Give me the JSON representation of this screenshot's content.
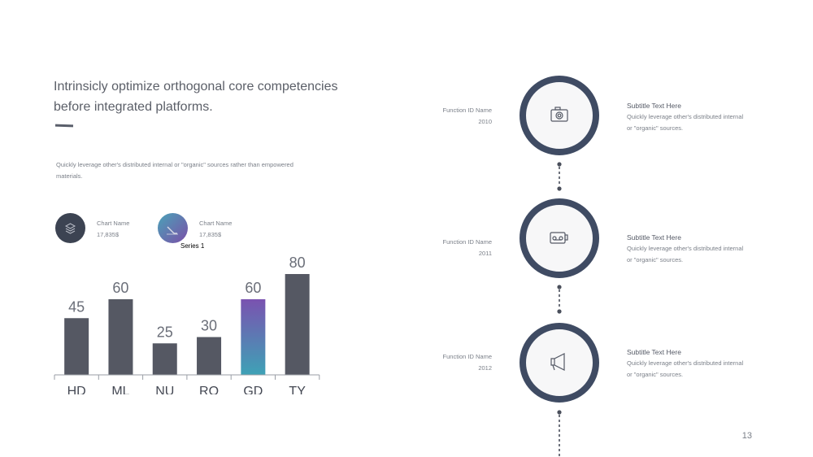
{
  "headline": "Intrinsicly optimize orthogonal core competencies before integrated platforms.",
  "body_text": "Quickly leverage  other's distributed internal or \"organic\" sources rather than empowered  materials.",
  "stats": [
    {
      "name": "Chart Name",
      "value": "17,835$",
      "icon": "layers-icon",
      "color": "#3c4352"
    },
    {
      "name": "Chart Name",
      "value": "17,835$",
      "icon": "pen-icon",
      "color_from": "#4aa3b8",
      "color_to": "#7a4fa8"
    }
  ],
  "chart_data": {
    "type": "bar",
    "legend_label": "Series 1",
    "categories": [
      "HD",
      "ML",
      "NU",
      "RO",
      "GD",
      "TY"
    ],
    "values": [
      45,
      60,
      25,
      30,
      60,
      80
    ],
    "highlight_index": 4,
    "ylim": [
      0,
      100
    ],
    "bar_color": "#555863",
    "highlight_from": "#7a52b0",
    "highlight_to": "#3ea2b6"
  },
  "timeline": [
    {
      "id_label": "Function ID Name",
      "year": "2010",
      "icon": "camera-icon",
      "title": "Subtitle  Text Here",
      "desc": "Quickly leverage  other's distributed internal  or \"organic\"  sources."
    },
    {
      "id_label": "Function ID Name",
      "year": "2011",
      "icon": "cassette-icon",
      "title": "Subtitle  Text Here",
      "desc": "Quickly leverage  other's distributed internal  or \"organic\"  sources."
    },
    {
      "id_label": "Function ID Name",
      "year": "2012",
      "icon": "megaphone-icon",
      "title": "Subtitle  Text Here",
      "desc": "Quickly leverage  other's distributed internal  or \"organic\"  sources."
    }
  ],
  "ring_color": "#3f4b63",
  "page_number": "13"
}
